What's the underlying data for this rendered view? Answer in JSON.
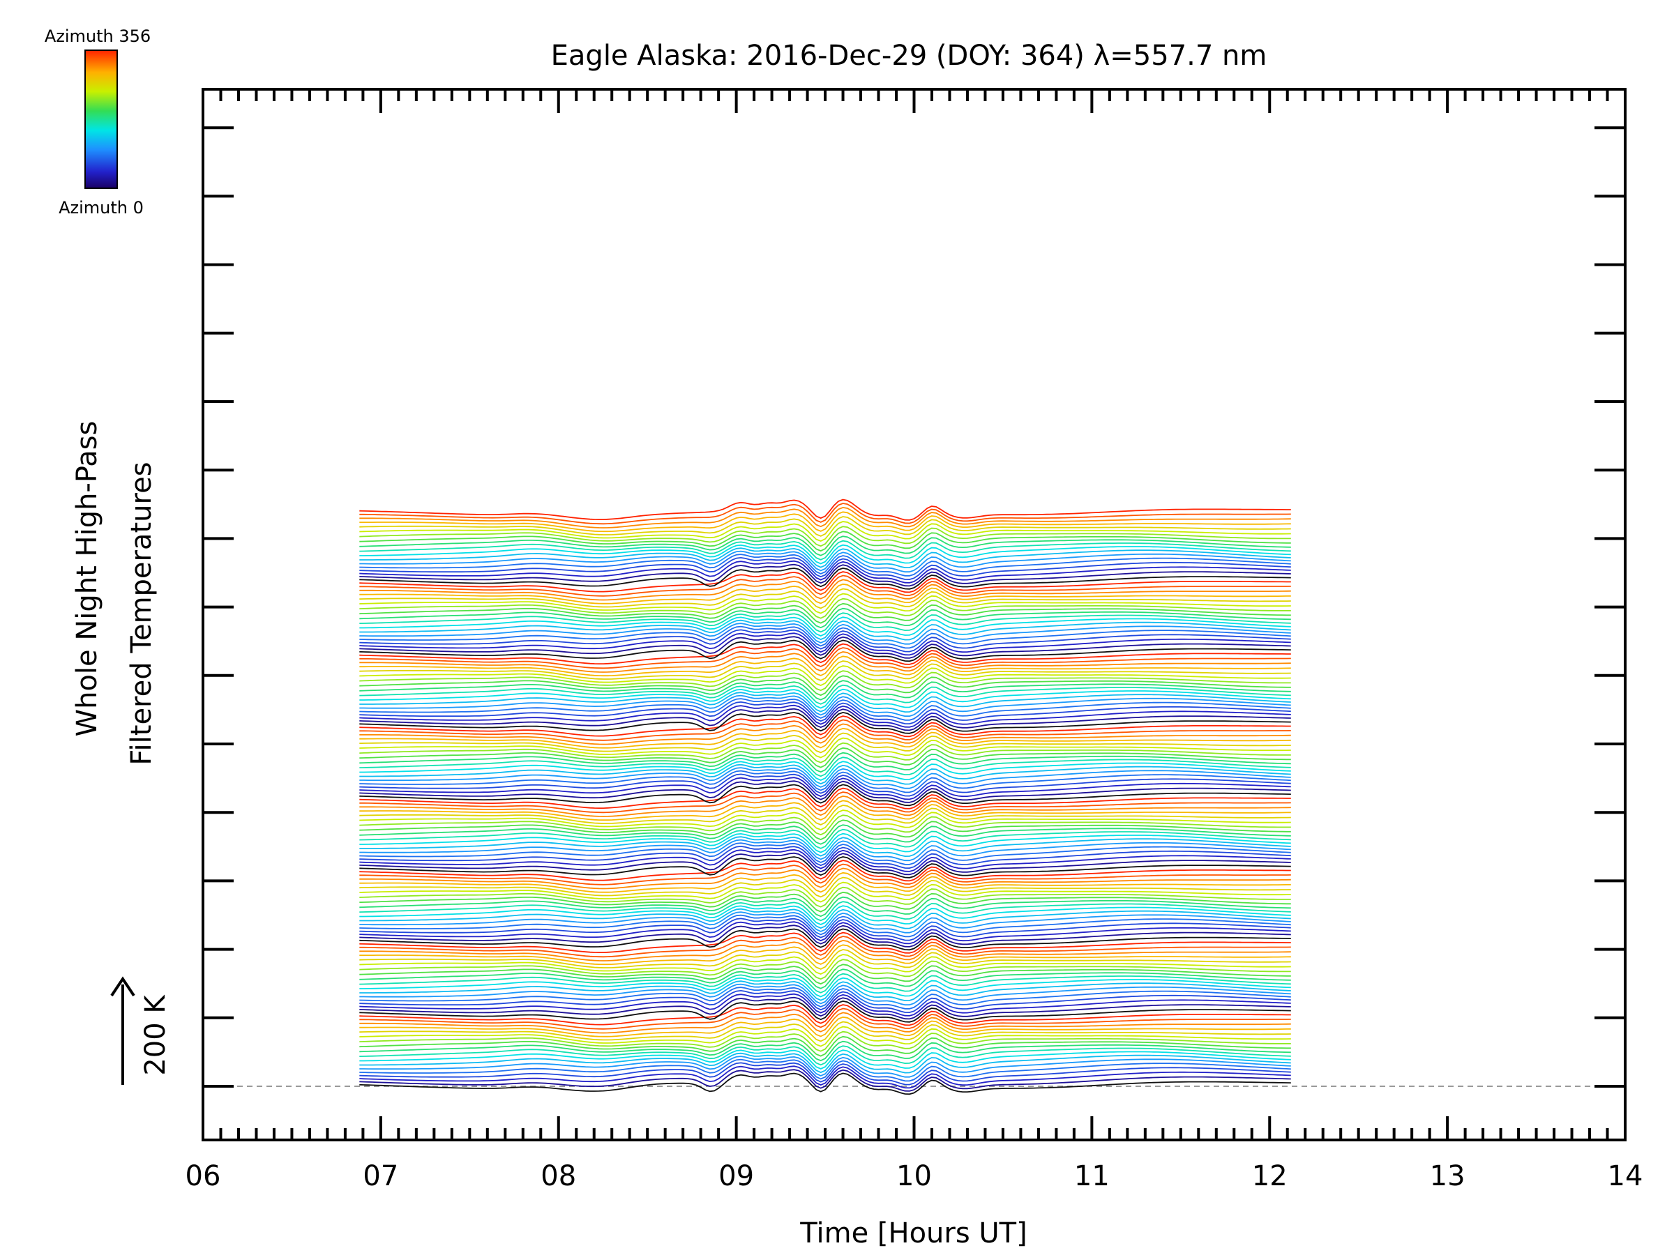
{
  "chart_data": {
    "type": "line",
    "title": "Eagle Alaska: 2016-Dec-29 (DOY: 364) λ=557.7 nm",
    "xlabel": "Time [Hours UT]",
    "ylabel_line1": "Whole Night High-Pass",
    "ylabel_line2": "Filtered Temperatures",
    "scale_bar_label": "200 K",
    "xlim": [
      6,
      14
    ],
    "x_tick_labels": [
      "06",
      "07",
      "08",
      "09",
      "10",
      "11",
      "12",
      "13",
      "14"
    ],
    "colorbar": {
      "top_label": "Azimuth  356",
      "bottom_label": "Azimuth  0",
      "azimuth_min": 0,
      "azimuth_max": 356
    },
    "series_count": 144,
    "groups": 8,
    "x_start": 6.88,
    "x_end": 12.12,
    "grid": false,
    "legend": "colorbar top-left"
  }
}
